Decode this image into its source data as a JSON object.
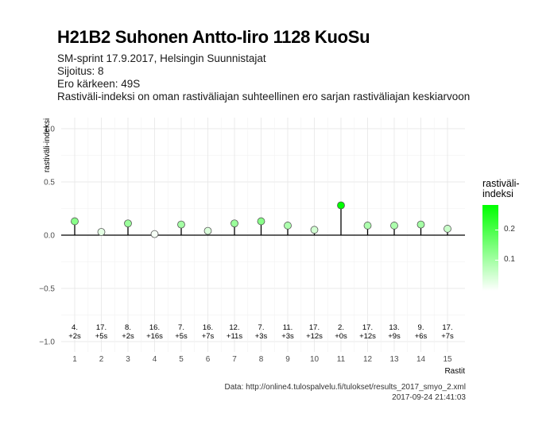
{
  "header": {
    "title": "H21B2 Suhonen Antto-Iiro 1128 KuoSu",
    "subtitle_lines": [
      "SM-sprint 17.9.2017, Helsingin Suunnistajat",
      "Sijoitus: 8",
      "Ero kärkeen: 49S",
      "Rastiväli-indeksi on oman rastiväliajan suhteellinen ero sarjan rastiväliajan keskiarvoon"
    ]
  },
  "caption": {
    "line1": "Data: http://online4.tulospalvelu.fi/tulokset/results_2017_smyo_2.xml",
    "line2": "2017-09-24 21:41:03"
  },
  "legend": {
    "title_line1": "rastiväli-",
    "title_line2": "indeksi",
    "ticks": [
      {
        "label": "0.2",
        "value": 0.2
      },
      {
        "label": "0.1",
        "value": 0.1
      }
    ],
    "range": [
      0,
      0.28
    ],
    "colors": {
      "high": "#00ff00",
      "low": "#ffffff"
    }
  },
  "chart_data": {
    "type": "scatter",
    "subtype": "lollipop",
    "xlabel": "Rastit",
    "ylabel": "rastiväli-indeksi",
    "ylim": [
      -1.0,
      1.0
    ],
    "yticks": [
      -1.0,
      -0.5,
      0.0,
      0.5,
      1.0
    ],
    "ytick_labels": [
      "−1.0",
      "−0.5",
      "0.0",
      "0.5",
      "1.0"
    ],
    "xlim": [
      1,
      15
    ],
    "x": [
      1,
      2,
      3,
      4,
      5,
      6,
      7,
      8,
      9,
      10,
      11,
      12,
      13,
      14,
      15
    ],
    "xtick_labels": [
      "1",
      "2",
      "3",
      "4",
      "5",
      "6",
      "7",
      "8",
      "9",
      "10",
      "11",
      "12",
      "13",
      "14",
      "15"
    ],
    "values": [
      0.13,
      0.03,
      0.11,
      0.01,
      0.1,
      0.04,
      0.11,
      0.13,
      0.09,
      0.05,
      0.28,
      0.09,
      0.09,
      0.1,
      0.06
    ],
    "annotations": [
      {
        "rank": "4.",
        "diff": "+2s"
      },
      {
        "rank": "17.",
        "diff": "+5s"
      },
      {
        "rank": "8.",
        "diff": "+2s"
      },
      {
        "rank": "16.",
        "diff": "+16s"
      },
      {
        "rank": "7.",
        "diff": "+5s"
      },
      {
        "rank": "16.",
        "diff": "+7s"
      },
      {
        "rank": "12.",
        "diff": "+11s"
      },
      {
        "rank": "7.",
        "diff": "+3s"
      },
      {
        "rank": "11.",
        "diff": "+3s"
      },
      {
        "rank": "17.",
        "diff": "+12s"
      },
      {
        "rank": "2.",
        "diff": "+0s"
      },
      {
        "rank": "17.",
        "diff": "+12s"
      },
      {
        "rank": "13.",
        "diff": "+9s"
      },
      {
        "rank": "9.",
        "diff": "+6s"
      },
      {
        "rank": "17.",
        "diff": "+7s"
      }
    ],
    "grid": true,
    "legend_position": "right",
    "point_color_scale": {
      "low": "#ffffff",
      "high": "#00ff00"
    },
    "baseline_color": "#000000",
    "grid_color": "#e6e6e6"
  }
}
